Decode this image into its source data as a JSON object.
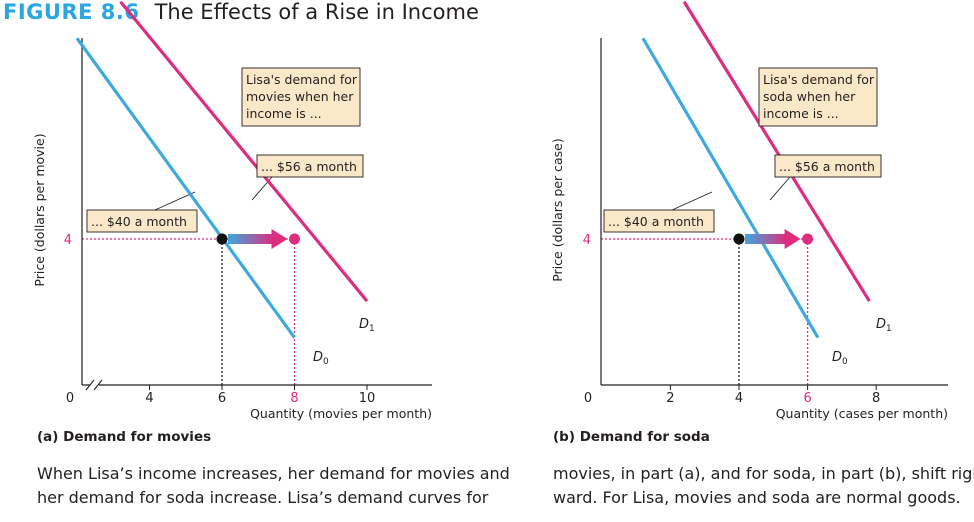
{
  "figure": {
    "label": "FIGURE 8.6",
    "title": "The Effects of a Rise in Income"
  },
  "colors": {
    "d0": "#3ea8e0",
    "d1": "#de2d7f",
    "box_fill": "#fbe8c8",
    "axis": "#231f20"
  },
  "chart_data": [
    {
      "type": "line",
      "panel": "a",
      "caption": "(a) Demand for movies",
      "xlabel": "Quantity (movies per month)",
      "ylabel": "Price (dollars per movie)",
      "origin_label": "0",
      "xlim": [
        3,
        11
      ],
      "ylim": [
        0,
        10
      ],
      "axis_break": true,
      "x_ticks": [
        4,
        6,
        8,
        10
      ],
      "x_tick_labels": [
        "4",
        "6",
        "8",
        "10"
      ],
      "y_ticks": [
        4
      ],
      "y_tick_labels": [
        "4"
      ],
      "highlight_x_tick": "8",
      "series": [
        {
          "name": "D0",
          "sub": "0",
          "x": [
            2.0,
            8.0
          ],
          "y": [
            9.5,
            1.3
          ]
        },
        {
          "name": "D1",
          "sub": "1",
          "x": [
            3.2,
            10.0
          ],
          "y": [
            10.5,
            2.3
          ]
        }
      ],
      "points": [
        {
          "x": 6,
          "y": 4,
          "color": "black"
        },
        {
          "x": 8,
          "y": 4,
          "color": "pink"
        }
      ],
      "shift_arrow": {
        "from_x": 6.0,
        "to_x": 8.0,
        "y": 4
      },
      "annotations": {
        "header": "Lisa's demand for movies when her income is ...",
        "header_lines": [
          "Lisa's demand for",
          "movies when her",
          "income is ..."
        ],
        "d1_label": "... $56 a month",
        "d0_label": "... $40 a month"
      }
    },
    {
      "type": "line",
      "panel": "b",
      "caption": "(b) Demand for soda",
      "xlabel": "Quantity (cases per month)",
      "ylabel": "Price (dollars per case)",
      "origin_label": "0",
      "xlim": [
        0,
        10
      ],
      "ylim": [
        0,
        10
      ],
      "axis_break": false,
      "x_ticks": [
        2,
        4,
        6,
        8
      ],
      "x_tick_labels": [
        "2",
        "4",
        "6",
        "8"
      ],
      "y_ticks": [
        4
      ],
      "y_tick_labels": [
        "4"
      ],
      "highlight_x_tick": "6",
      "series": [
        {
          "name": "D0",
          "sub": "0",
          "x": [
            1.2,
            6.3
          ],
          "y": [
            9.5,
            1.3
          ]
        },
        {
          "name": "D1",
          "sub": "1",
          "x": [
            2.4,
            7.8
          ],
          "y": [
            10.5,
            2.3
          ]
        }
      ],
      "points": [
        {
          "x": 4,
          "y": 4,
          "color": "black"
        },
        {
          "x": 6,
          "y": 4,
          "color": "pink"
        }
      ],
      "shift_arrow": {
        "from_x": 4.0,
        "to_x": 6.0,
        "y": 4
      },
      "annotations": {
        "header": "Lisa's demand for soda when her income is ...",
        "header_lines": [
          "Lisa's demand for",
          "soda when her",
          "income is ..."
        ],
        "d1_label": "... $56 a month",
        "d0_label": "... $40 a month"
      }
    }
  ],
  "captions": {
    "panel_a": "(a) Demand for movies",
    "panel_b": "(b) Demand for soda"
  },
  "text": {
    "left_line1": "When Lisa’s income increases, her demand for movies and",
    "left_line2": "her demand for soda increase. Lisa’s demand curves for",
    "right_line1": "movies, in part (a), and for soda, in part (b), shift right-",
    "right_line2": "ward. For Lisa, movies and soda are normal goods."
  }
}
